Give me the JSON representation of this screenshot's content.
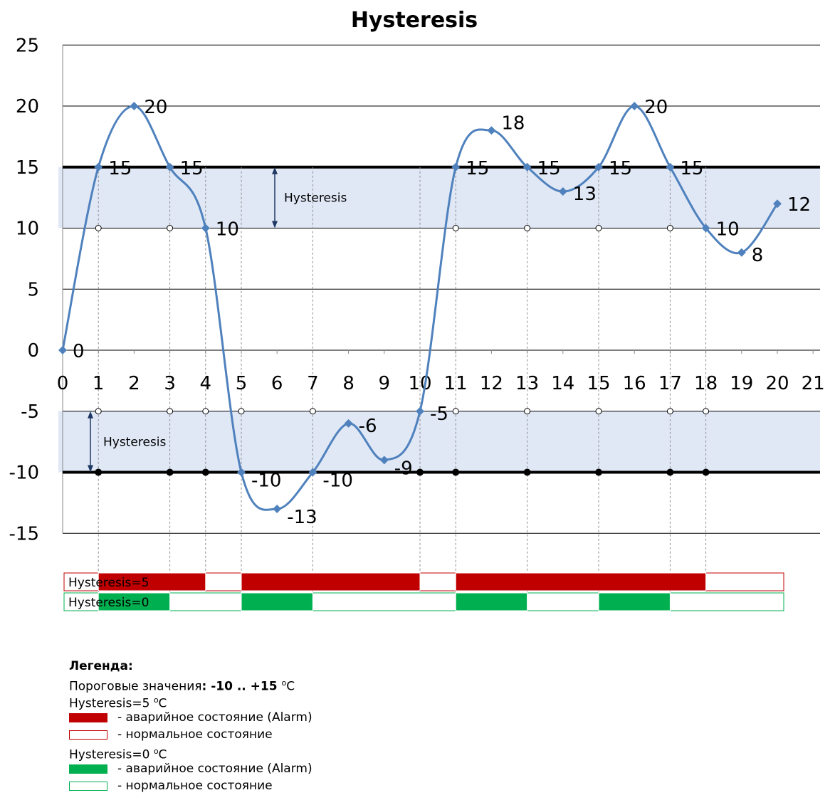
{
  "chart_data": {
    "type": "line",
    "title": "Hysteresis",
    "x": [
      0,
      1,
      2,
      3,
      4,
      5,
      6,
      7,
      8,
      9,
      10,
      11,
      12,
      13,
      14,
      15,
      16,
      17,
      18,
      19,
      20
    ],
    "values": [
      0,
      15,
      20,
      15,
      10,
      -10,
      -13,
      -10,
      -6,
      -9,
      -5,
      15,
      18,
      15,
      13,
      15,
      20,
      15,
      10,
      8,
      12
    ],
    "xlim": [
      0,
      21
    ],
    "ylim": [
      -15,
      25
    ],
    "x_ticks": [
      "0",
      "1",
      "2",
      "3",
      "4",
      "5",
      "6",
      "7",
      "8",
      "9",
      "10",
      "11",
      "12",
      "13",
      "14",
      "15",
      "16",
      "17",
      "18",
      "19",
      "20",
      "21"
    ],
    "y_ticks": [
      "25",
      "20",
      "15",
      "10",
      "5",
      "0",
      "-5",
      "-10",
      "-15"
    ],
    "data_labels": [
      "0",
      "15",
      "20",
      "15",
      "10",
      "-10",
      "-13",
      "-10",
      "-6",
      "-9",
      "-5",
      "15",
      "18",
      "15",
      "13",
      "15",
      "20",
      "15",
      "10",
      "8",
      "12"
    ],
    "series_color": "#4f81bd",
    "grid": true,
    "thresholds": {
      "upper": 15,
      "lower": -10,
      "upper_release": 10,
      "lower_release": -5
    },
    "hysteresis_bands": [
      {
        "from": 10,
        "to": 15,
        "label": "Hysteresis"
      },
      {
        "from": -10,
        "to": -5,
        "label": "Hysteresis"
      }
    ],
    "band_color": "#e0e8f6",
    "state_bars": [
      {
        "label": "Hysteresis=5",
        "color": "#c00000",
        "alarm_intervals": [
          [
            1,
            4
          ],
          [
            5,
            10
          ],
          [
            11,
            18
          ]
        ]
      },
      {
        "label": "Hysteresis=0",
        "color": "#00b050",
        "alarm_intervals": [
          [
            1,
            3
          ],
          [
            5,
            7
          ],
          [
            11,
            13
          ],
          [
            15,
            17
          ]
        ]
      }
    ]
  },
  "legend": {
    "title": "Легенда:",
    "thresholds_prefix": "Пороговые значения",
    "thresholds_value": ": -10 .. +15 ",
    "unit_sup": "o",
    "unit": "C",
    "h5_title": "Hysteresis=5 ",
    "h0_title": "Hysteresis=0 ",
    "alarm_text": "- аварийное состояние (Alarm)",
    "normal_text": "- нормальное состояние",
    "red": "#c00000",
    "green": "#00b050"
  }
}
